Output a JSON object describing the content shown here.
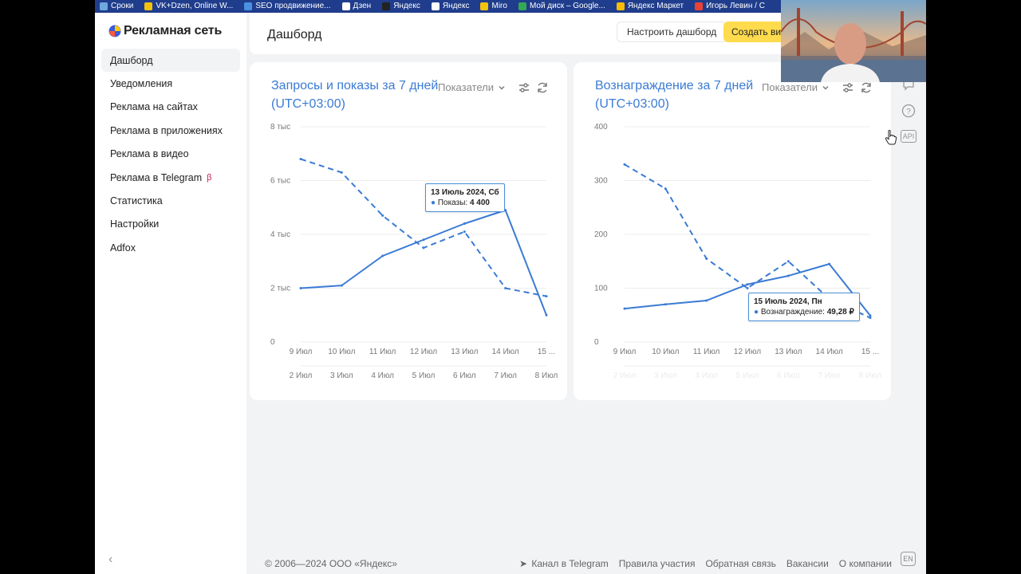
{
  "bookmarks": [
    {
      "label": "Сроки",
      "color": "#6fa8dc"
    },
    {
      "label": "VK+Dzen, Online W...",
      "color": "#f4c20d"
    },
    {
      "label": "SEO продвижение...",
      "color": "#4a90e2"
    },
    {
      "label": "Дзен",
      "color": "#ffffff"
    },
    {
      "label": "Яндекс",
      "color": "#222222"
    },
    {
      "label": "Яндекс",
      "color": "#ffffff"
    },
    {
      "label": "Miro",
      "color": "#f4c20d"
    },
    {
      "label": "Мой диск – Google...",
      "color": "#34a853"
    },
    {
      "label": "Яндекс Маркет",
      "color": "#fbbc04"
    },
    {
      "label": "Игорь Левин / С",
      "color": "#ea4335"
    }
  ],
  "logo": {
    "text": "Рекламная сеть"
  },
  "nav": [
    {
      "label": "Дашборд",
      "active": true
    },
    {
      "label": "Уведомления"
    },
    {
      "label": "Реклама на сайтах"
    },
    {
      "label": "Реклама в приложениях"
    },
    {
      "label": "Реклама в видео"
    },
    {
      "label": "Реклама в Telegram",
      "badge": "β"
    },
    {
      "label": "Статистика"
    },
    {
      "label": "Настройки"
    },
    {
      "label": "Adfox"
    }
  ],
  "header": {
    "title": "Дашборд",
    "config_button": "Настроить дашборд",
    "create_button": "Создать вид"
  },
  "card1": {
    "title": "Запросы и показы за 7 дней (UTC+03:00)",
    "selector": "Показатели",
    "tooltip": {
      "date": "13 Июль 2024, Сб",
      "label": "Показы:",
      "value": "4 400"
    }
  },
  "card2": {
    "title": "Вознаграждение за 7 дней (UTC+03:00)",
    "selector": "Показатели",
    "tooltip": {
      "date": "15 Июль 2024, Пн",
      "label": "Вознаграждение:",
      "value": "49,28 ₽"
    }
  },
  "chart_data": [
    {
      "type": "line",
      "title": "Запросы и показы за 7 дней (UTC+03:00)",
      "y_ticks": [
        "0",
        "2 тыс",
        "4 тыс",
        "6 тыс",
        "8 тыс"
      ],
      "ylim": [
        0,
        8000
      ],
      "x": [
        "9 Июл",
        "10 Июл",
        "11 Июл",
        "12 Июл",
        "13 Июл",
        "14 Июл",
        "15 ..."
      ],
      "x_compare": [
        "2 Июл",
        "3 Июл",
        "4 Июл",
        "5 Июл",
        "6 Июл",
        "7 Июл",
        "8 Июл"
      ],
      "series": [
        {
          "style": "solid",
          "values": [
            2000,
            2100,
            3200,
            3800,
            4400,
            4900,
            1000
          ]
        },
        {
          "style": "dashed",
          "values": [
            6800,
            6300,
            4700,
            3500,
            4100,
            2000,
            1700
          ]
        }
      ]
    },
    {
      "type": "line",
      "title": "Вознаграждение за 7 дней (UTC+03:00)",
      "y_ticks": [
        "0",
        "100",
        "200",
        "300",
        "400"
      ],
      "ylim": [
        0,
        400
      ],
      "x": [
        "9 Июл",
        "10 Июл",
        "11 Июл",
        "12 Июл",
        "13 Июл",
        "14 Июл",
        "15 ..."
      ],
      "x_compare": [
        "2 Июл",
        "3 Июл",
        "4 Июл",
        "5 Июл",
        "6 Июл",
        "7 Июл",
        "8 Июл"
      ],
      "series": [
        {
          "style": "solid",
          "values": [
            62,
            70,
            77,
            107,
            123,
            145,
            49
          ]
        },
        {
          "style": "dashed",
          "values": [
            330,
            285,
            155,
            100,
            150,
            80,
            45
          ]
        }
      ]
    }
  ],
  "footer": {
    "copyright": "© 2006—2024 ООО «Яндекс»",
    "links": [
      "Канал в Telegram",
      "Правила участия",
      "Обратная связь",
      "Вакансии",
      "О компании"
    ],
    "lang": "EN"
  },
  "rail": {
    "api": "API"
  },
  "colors": {
    "accent": "#3a7bd5",
    "create_button": "#ffdb4d",
    "bookmarks_bar": "#1f3d8c"
  }
}
